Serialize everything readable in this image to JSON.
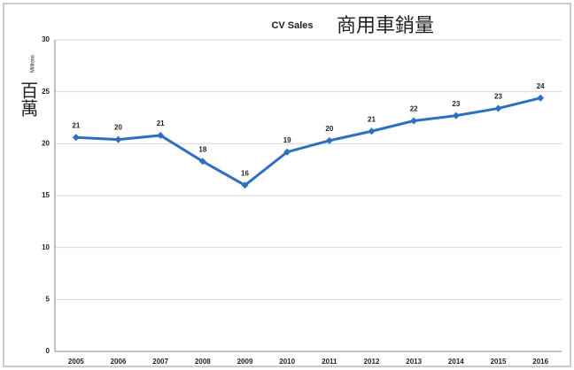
{
  "chart_data": {
    "type": "line",
    "title": "CV Sales",
    "annotations": [
      "商用車銷量",
      "百萬"
    ],
    "y_label": "Millions",
    "categories": [
      "2005",
      "2006",
      "2007",
      "2008",
      "2009",
      "2010",
      "2011",
      "2012",
      "2013",
      "2014",
      "2015",
      "2016"
    ],
    "series": [
      {
        "name": "CV Sales",
        "color": "#2e6fc0",
        "values": [
          20.6,
          20.4,
          20.8,
          18.3,
          16.0,
          19.2,
          20.3,
          21.2,
          22.2,
          22.7,
          23.4,
          24.4
        ],
        "value_labels": [
          "21",
          "20",
          "21",
          "18",
          "16",
          "19",
          "20",
          "21",
          "22",
          "23",
          "23",
          "24"
        ]
      }
    ],
    "ylim": [
      0,
      30
    ],
    "yticks": [
      0,
      5,
      10,
      15,
      20,
      25,
      30
    ],
    "grid": true
  }
}
